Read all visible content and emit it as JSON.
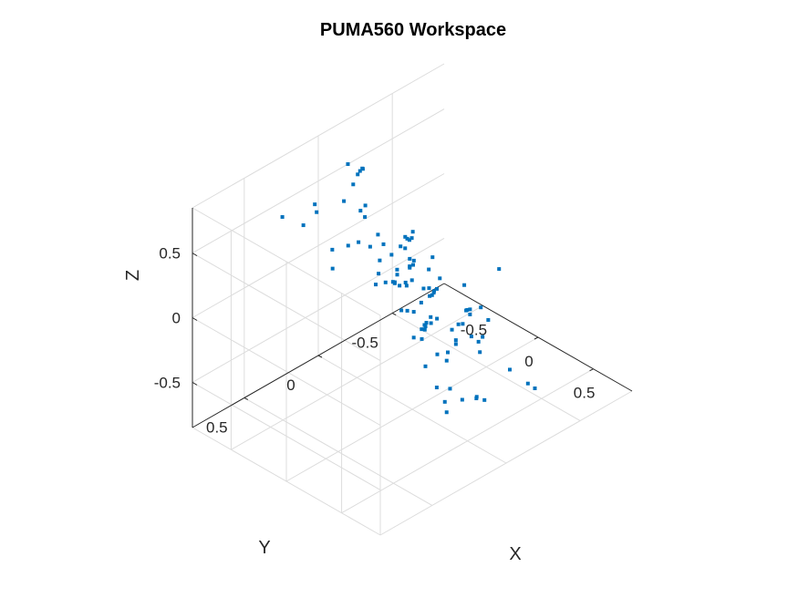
{
  "chart_data": {
    "type": "scatter",
    "title": "PUMA560 Workspace",
    "xlabel": "X",
    "ylabel": "Y",
    "zlabel": "Z",
    "xlim": [
      -0.85,
      0.85
    ],
    "ylim": [
      -0.85,
      0.85
    ],
    "zlim": [
      -0.85,
      0.85
    ],
    "xticks": [
      -0.5,
      0,
      0.5
    ],
    "yticks": [
      -0.5,
      0,
      0.5
    ],
    "zticks": [
      -0.5,
      0,
      0.5
    ],
    "xtick_labels": [
      "-0.5",
      "0",
      "0.5"
    ],
    "ytick_labels": [
      "-0.5",
      "0",
      "0.5"
    ],
    "ztick_labels": [
      "-0.5",
      "0",
      "0.5"
    ],
    "grid": true,
    "marker_color": "#0072BD",
    "points": [
      {
        "x": -0.4,
        "y": 0.1,
        "z": 0.76
      },
      {
        "x": -0.31,
        "y": 0.23,
        "z": 0.76
      },
      {
        "x": -0.25,
        "y": 0.13,
        "z": 0.69
      },
      {
        "x": -0.12,
        "y": 0.23,
        "z": 0.73
      },
      {
        "x": -0.2,
        "y": 0.2,
        "z": 0.72
      },
      {
        "x": 0.05,
        "y": 0.4,
        "z": 0.73
      },
      {
        "x": 0.01,
        "y": 0.44,
        "z": 0.71
      },
      {
        "x": -0.04,
        "y": 0.51,
        "z": 0.7
      },
      {
        "x": 0.07,
        "y": 0.59,
        "z": 0.66
      },
      {
        "x": -0.52,
        "y": -0.02,
        "z": 0.7
      },
      {
        "x": -0.54,
        "y": -0.07,
        "z": 0.7
      },
      {
        "x": 0.34,
        "y": 0.5,
        "z": 0.61
      },
      {
        "x": 0.4,
        "y": 0.4,
        "z": 0.65
      },
      {
        "x": 0.48,
        "y": 0.36,
        "z": 0.62
      },
      {
        "x": -0.53,
        "y": 0.25,
        "z": 0.58
      },
      {
        "x": -0.6,
        "y": 0.21,
        "z": 0.58
      },
      {
        "x": -0.7,
        "y": -0.17,
        "z": 0.54
      },
      {
        "x": -0.72,
        "y": -0.2,
        "z": 0.53
      },
      {
        "x": -0.85,
        "y": -0.2,
        "z": 0.5
      },
      {
        "x": -0.8,
        "y": 0.28,
        "z": 0.43
      },
      {
        "x": -0.65,
        "y": 0.25,
        "z": 0.42
      },
      {
        "x": -0.31,
        "y": 0.0,
        "z": 0.35
      },
      {
        "x": -0.26,
        "y": 0.0,
        "z": 0.3
      },
      {
        "x": -0.26,
        "y": 0.09,
        "z": 0.34
      },
      {
        "x": -0.12,
        "y": 0.05,
        "z": 0.32
      },
      {
        "x": 0.08,
        "y": 0.19,
        "z": 0.3
      },
      {
        "x": 0.11,
        "y": 0.2,
        "z": 0.31
      },
      {
        "x": 0.14,
        "y": 0.19,
        "z": 0.3
      },
      {
        "x": -0.05,
        "y": 0.19,
        "z": 0.3
      },
      {
        "x": 0.0,
        "y": 0.18,
        "z": 0.25
      },
      {
        "x": -0.2,
        "y": 0.07,
        "z": 0.25
      },
      {
        "x": 0.03,
        "y": 0.14,
        "z": 0.24
      },
      {
        "x": 0.21,
        "y": 0.08,
        "z": 0.24
      },
      {
        "x": 0.26,
        "y": 0.06,
        "z": 0.2
      },
      {
        "x": -0.38,
        "y": -0.25,
        "z": 0.12
      },
      {
        "x": -0.41,
        "y": -0.31,
        "z": 0.12
      },
      {
        "x": -0.36,
        "y": -0.19,
        "z": 0.11
      },
      {
        "x": -0.36,
        "y": -0.25,
        "z": 0.12
      },
      {
        "x": -0.21,
        "y": -0.14,
        "z": 0.12
      },
      {
        "x": -0.17,
        "y": -0.11,
        "z": 0.09
      },
      {
        "x": -0.11,
        "y": 0.02,
        "z": 0.19
      },
      {
        "x": 0.17,
        "y": 0.2,
        "z": 0.13
      },
      {
        "x": 0.21,
        "y": 0.19,
        "z": 0.14
      },
      {
        "x": 0.38,
        "y": 0.22,
        "z": 0.1
      },
      {
        "x": 0.07,
        "y": 0.09,
        "z": 0.2
      },
      {
        "x": 0.02,
        "y": 0.06,
        "z": 0.18
      },
      {
        "x": -0.09,
        "y": -0.05,
        "z": 0.18
      },
      {
        "x": 0.63,
        "y": 0.23,
        "z": 0.05
      },
      {
        "x": 0.48,
        "y": 0.09,
        "z": 0.06
      },
      {
        "x": 0.66,
        "y": 0.26,
        "z": 0.02
      },
      {
        "x": 0.35,
        "y": -0.08,
        "z": -0.07
      },
      {
        "x": 0.3,
        "y": -0.14,
        "z": -0.03
      },
      {
        "x": 0.27,
        "y": -0.17,
        "z": -0.06
      },
      {
        "x": -0.03,
        "y": -0.14,
        "z": -0.08
      },
      {
        "x": -0.07,
        "y": -0.2,
        "z": -0.1
      },
      {
        "x": -0.3,
        "y": -0.23,
        "z": -0.03
      },
      {
        "x": -0.32,
        "y": -0.25,
        "z": -0.02
      },
      {
        "x": -0.62,
        "y": -0.46,
        "z": -0.13
      },
      {
        "x": -0.6,
        "y": -0.4,
        "z": -0.16
      },
      {
        "x": -0.68,
        "y": -0.46,
        "z": -0.15
      },
      {
        "x": 0.17,
        "y": 0.0,
        "z": -0.1
      },
      {
        "x": 0.1,
        "y": -0.05,
        "z": -0.12
      },
      {
        "x": 0.12,
        "y": 0.0,
        "z": -0.15
      },
      {
        "x": 0.09,
        "y": -0.1,
        "z": -0.17
      },
      {
        "x": -0.14,
        "y": -0.25,
        "z": -0.18
      },
      {
        "x": -0.2,
        "y": -0.21,
        "z": -0.26
      },
      {
        "x": -0.12,
        "y": -0.1,
        "z": -0.22
      },
      {
        "x": 0.02,
        "y": -0.07,
        "z": -0.27
      },
      {
        "x": 0.06,
        "y": -0.02,
        "z": -0.29
      },
      {
        "x": 0.2,
        "y": -0.02,
        "z": -0.34
      },
      {
        "x": 0.2,
        "y": 0.06,
        "z": -0.38
      },
      {
        "x": 0.15,
        "y": -0.2,
        "z": -0.25
      },
      {
        "x": -0.09,
        "y": -0.15,
        "z": -0.34
      },
      {
        "x": -0.14,
        "y": -0.2,
        "z": -0.38
      },
      {
        "x": -0.08,
        "y": -0.07,
        "z": -0.38
      },
      {
        "x": -0.33,
        "y": -0.36,
        "z": -0.31
      },
      {
        "x": -0.34,
        "y": -0.42,
        "z": -0.36
      },
      {
        "x": -0.42,
        "y": -0.5,
        "z": -0.37
      },
      {
        "x": -0.52,
        "y": -0.5,
        "z": -0.35
      },
      {
        "x": -0.62,
        "y": -0.6,
        "z": -0.37
      },
      {
        "x": 0.49,
        "y": 0.2,
        "z": -0.31
      },
      {
        "x": 0.57,
        "y": 0.17,
        "z": -0.3
      },
      {
        "x": 0.6,
        "y": 0.11,
        "z": -0.41
      },
      {
        "x": 0.63,
        "y": 0.25,
        "z": -0.32
      },
      {
        "x": 0.7,
        "y": 0.29,
        "z": -0.34
      },
      {
        "x": 0.1,
        "y": -0.22,
        "z": -0.41
      },
      {
        "x": -0.08,
        "y": -0.45,
        "z": -0.45
      },
      {
        "x": -0.12,
        "y": -0.48,
        "z": -0.45
      },
      {
        "x": 0.08,
        "y": -0.34,
        "z": -0.47
      },
      {
        "x": 0.06,
        "y": -0.25,
        "z": -0.48
      },
      {
        "x": 0.13,
        "y": -0.36,
        "z": -0.58
      },
      {
        "x": -0.44,
        "y": -0.68,
        "z": -0.55
      },
      {
        "x": -0.25,
        "y": -0.65,
        "z": -0.61
      },
      {
        "x": -0.42,
        "y": -0.9,
        "z": -0.56
      },
      {
        "x": -0.25,
        "y": -0.7,
        "z": -0.74
      },
      {
        "x": -0.06,
        "y": -0.52,
        "z": -0.66
      },
      {
        "x": -0.03,
        "y": -0.47,
        "z": -0.65
      },
      {
        "x": 0.24,
        "y": -0.48,
        "z": -0.74
      },
      {
        "x": 0.35,
        "y": -0.52,
        "z": -0.82
      },
      {
        "x": 0.44,
        "y": -0.5,
        "z": -0.8
      },
      {
        "x": 0.5,
        "y": -0.06,
        "z": -0.56
      },
      {
        "x": 0.53,
        "y": -0.04,
        "z": -0.52
      },
      {
        "x": 0.56,
        "y": -0.07,
        "z": -0.55
      }
    ]
  }
}
